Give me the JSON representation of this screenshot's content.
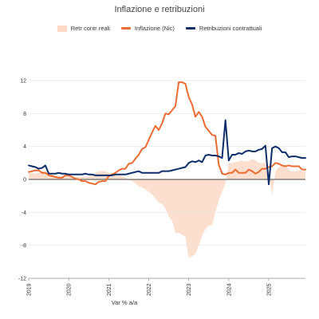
{
  "chart_data": {
    "type": "line",
    "title": "Inflazione e retribuzioni",
    "xlabel": "Var % a/a",
    "ylabel": "",
    "ylim": [
      -12,
      12
    ],
    "yticks": [
      12,
      8,
      4,
      0,
      -4,
      -8,
      -12
    ],
    "xticks": [
      "2019",
      "2020",
      "2021",
      "2022",
      "2023",
      "2024",
      "2025"
    ],
    "x_start": "2019-01",
    "grid": true,
    "legend_position": "top-center",
    "colors": {
      "retr_reali": "#fbd9c6",
      "inflazione": "#ee6b32",
      "retribuzioni": "#0e2d6b"
    },
    "series": [
      {
        "name": "Retr contr reali",
        "style": "area",
        "values": [
          0.8,
          0.8,
          0.7,
          0.8,
          0.9,
          1.0,
          0.9,
          0.6,
          0.4,
          0.4,
          0.4,
          0.5,
          0.4,
          0.3,
          0.3,
          0.3,
          0.3,
          0.3,
          0.4,
          0.6,
          0.8,
          1.0,
          1.0,
          1.0,
          0.8,
          0.7,
          0.6,
          0.5,
          0.4,
          0.2,
          0.0,
          -0.2,
          -0.5,
          -0.8,
          -1.0,
          -1.2,
          -1.5,
          -1.8,
          -2.3,
          -2.8,
          -3.0,
          -3.5,
          -4.5,
          -5.0,
          -6.5,
          -6.5,
          -6.7,
          -7.0,
          -9.5,
          -9.3,
          -9.0,
          -8.0,
          -6.8,
          -6.0,
          -5.6,
          -5.5,
          -4.0,
          -2.5,
          -1.5,
          -0.5,
          2.0,
          2.0,
          2.1,
          2.2,
          2.3,
          2.2,
          2.2,
          2.5,
          2.3,
          2.0,
          2.0,
          2.0,
          1.0,
          -2.0,
          1.0,
          1.5,
          1.7,
          1.6,
          1.2,
          1.0,
          1.0,
          1.1,
          1.0,
          1.0
        ]
      },
      {
        "name": "Inflazione (Nic)",
        "style": "line",
        "values": [
          0.9,
          1.0,
          1.1,
          1.1,
          0.8,
          0.8,
          0.5,
          0.4,
          0.3,
          0.2,
          0.2,
          0.5,
          0.5,
          0.3,
          0.1,
          0.0,
          -0.2,
          -0.2,
          -0.4,
          -0.5,
          -0.6,
          -0.3,
          -0.2,
          -0.2,
          0.4,
          0.6,
          0.8,
          1.1,
          1.3,
          1.3,
          1.9,
          2.0,
          2.5,
          3.0,
          3.7,
          3.9,
          4.8,
          5.7,
          6.5,
          6.0,
          6.8,
          8.0,
          7.9,
          8.4,
          8.9,
          11.8,
          11.8,
          11.6,
          10.0,
          9.1,
          7.6,
          8.2,
          7.6,
          6.4,
          5.9,
          5.4,
          5.3,
          1.8,
          0.7,
          0.6,
          0.8,
          0.8,
          1.2,
          0.8,
          0.8,
          0.8,
          1.2,
          1.0,
          0.7,
          0.9,
          1.3,
          1.3,
          1.5,
          1.6,
          2.0,
          1.9,
          1.7,
          1.6,
          1.7,
          1.6,
          1.6,
          1.6,
          1.2,
          1.2
        ]
      },
      {
        "name": "Retribuzioni contrattuali",
        "style": "line",
        "values": [
          1.7,
          1.6,
          1.5,
          1.3,
          1.4,
          1.7,
          0.7,
          0.7,
          0.7,
          0.8,
          0.7,
          0.7,
          0.6,
          0.6,
          0.6,
          0.6,
          0.6,
          0.7,
          0.6,
          0.6,
          0.5,
          0.5,
          0.5,
          0.5,
          0.5,
          0.5,
          0.6,
          0.6,
          0.6,
          0.6,
          0.7,
          0.8,
          0.9,
          1.0,
          0.8,
          0.8,
          0.8,
          0.8,
          0.8,
          0.8,
          1.0,
          1.0,
          1.0,
          1.1,
          1.2,
          1.3,
          1.4,
          1.5,
          2.0,
          2.2,
          2.1,
          2.3,
          2.1,
          2.9,
          3.0,
          2.9,
          2.9,
          2.8,
          2.6,
          7.2,
          2.3,
          3.0,
          3.0,
          3.2,
          3.1,
          3.4,
          3.5,
          3.4,
          3.4,
          3.6,
          3.7,
          4.1,
          -0.6,
          3.8,
          4.0,
          3.8,
          3.3,
          3.3,
          2.7,
          2.8,
          2.8,
          2.7,
          2.6,
          2.6
        ]
      }
    ]
  }
}
